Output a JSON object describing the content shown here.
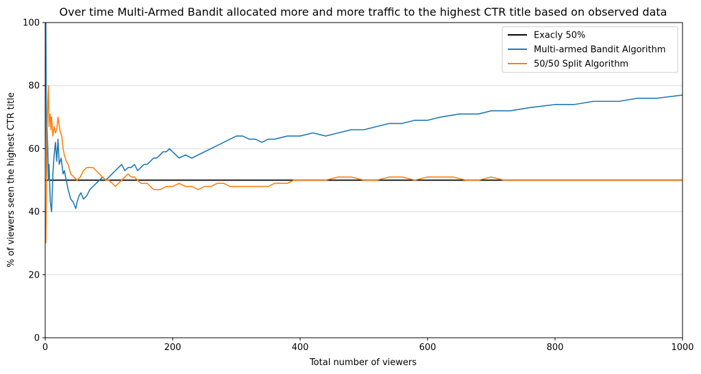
{
  "chart_data": {
    "type": "line",
    "title": "Over time Multi-Armed Bandit allocated more and more traffic to the highest CTR title based on observed data",
    "xlabel": "Total number of viewers",
    "ylabel": "% of viewers seen the highest CTR title",
    "xlim": [
      0,
      1000
    ],
    "ylim": [
      0,
      100
    ],
    "xticks": [
      0,
      200,
      400,
      600,
      800,
      1000
    ],
    "yticks": [
      0,
      20,
      40,
      60,
      80,
      100
    ],
    "xtick_labels": [
      "0",
      "200",
      "400",
      "600",
      "800",
      "1000"
    ],
    "ytick_labels": [
      "0",
      "20",
      "40",
      "60",
      "80",
      "100"
    ],
    "grid": "horizontal",
    "legend_position": "top-right",
    "series": [
      {
        "name": "Exacly 50%",
        "color": "#000000",
        "x": [
          0,
          1000
        ],
        "y": [
          50,
          50
        ]
      },
      {
        "name": "Multi-armed Bandit Algorithm",
        "color": "#1f77b4",
        "x": [
          1,
          2,
          3,
          4,
          5,
          6,
          8,
          10,
          12,
          14,
          16,
          18,
          20,
          22,
          25,
          28,
          30,
          33,
          36,
          40,
          44,
          48,
          50,
          53,
          56,
          60,
          65,
          70,
          75,
          80,
          85,
          90,
          95,
          100,
          105,
          110,
          115,
          120,
          125,
          130,
          135,
          140,
          145,
          150,
          155,
          160,
          165,
          170,
          175,
          180,
          185,
          190,
          195,
          200,
          205,
          210,
          220,
          230,
          240,
          250,
          260,
          270,
          280,
          290,
          300,
          310,
          320,
          330,
          340,
          350,
          360,
          380,
          400,
          420,
          440,
          460,
          480,
          500,
          520,
          540,
          560,
          580,
          600,
          620,
          650,
          680,
          700,
          730,
          760,
          800,
          830,
          860,
          900,
          930,
          960,
          1000
        ],
        "y": [
          100,
          50,
          67,
          60,
          50,
          55,
          43,
          40,
          52,
          58,
          62,
          56,
          63,
          55,
          57,
          52,
          53,
          50,
          47,
          44,
          43,
          41,
          43,
          45,
          46,
          44,
          45,
          47,
          48,
          49,
          50,
          51,
          50,
          51,
          52,
          53,
          54,
          55,
          53,
          54,
          54,
          55,
          53,
          54,
          55,
          55,
          56,
          57,
          57,
          58,
          59,
          59,
          60,
          59,
          58,
          57,
          58,
          57,
          58,
          59,
          60,
          61,
          62,
          63,
          64,
          64,
          63,
          63,
          62,
          63,
          63,
          64,
          64,
          65,
          64,
          65,
          66,
          66,
          67,
          68,
          68,
          69,
          69,
          70,
          71,
          71,
          72,
          72,
          73,
          74,
          74,
          75,
          75,
          76,
          76,
          77
        ]
      },
      {
        "name": "50/50 Split Algorithm",
        "color": "#ff7f0e",
        "x": [
          1,
          2,
          3,
          4,
          5,
          6,
          7,
          8,
          9,
          10,
          12,
          14,
          16,
          18,
          20,
          22,
          24,
          26,
          28,
          30,
          33,
          36,
          40,
          45,
          50,
          55,
          60,
          65,
          70,
          75,
          80,
          85,
          90,
          95,
          100,
          105,
          110,
          115,
          120,
          125,
          130,
          135,
          140,
          145,
          150,
          160,
          170,
          180,
          190,
          200,
          210,
          220,
          230,
          240,
          250,
          260,
          270,
          280,
          290,
          300,
          310,
          320,
          330,
          340,
          350,
          360,
          370,
          380,
          390,
          400,
          420,
          440,
          460,
          480,
          500,
          520,
          540,
          560,
          580,
          600,
          620,
          640,
          660,
          680,
          700,
          720,
          740,
          760,
          780,
          800,
          820,
          840,
          860,
          880,
          900,
          920,
          940,
          960,
          980,
          1000
        ],
        "y": [
          30,
          50,
          67,
          75,
          80,
          67,
          70,
          71,
          66,
          70,
          64,
          67,
          65,
          66,
          70,
          67,
          65,
          64,
          60,
          58,
          56,
          55,
          52,
          51,
          50,
          51,
          53,
          54,
          54,
          54,
          53,
          52,
          51,
          50,
          50,
          49,
          48,
          49,
          50,
          51,
          52,
          51,
          51,
          50,
          49,
          49,
          47,
          47,
          48,
          48,
          49,
          48,
          48,
          47,
          48,
          48,
          49,
          49,
          48,
          48,
          48,
          48,
          48,
          48,
          48,
          49,
          49,
          49,
          50,
          50,
          50,
          50,
          51,
          51,
          50,
          50,
          51,
          51,
          50,
          51,
          51,
          51,
          50,
          50,
          51,
          50,
          50,
          50,
          50,
          50,
          50,
          50,
          50,
          50,
          50,
          50,
          50,
          50,
          50,
          50
        ]
      }
    ]
  }
}
